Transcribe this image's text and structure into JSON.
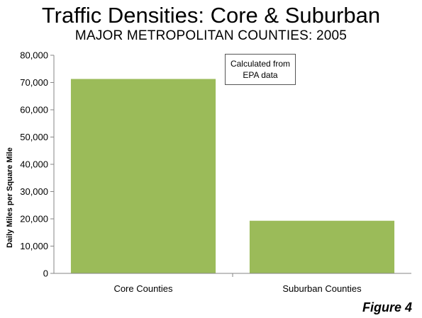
{
  "title": "Traffic Densities: Core & Suburban",
  "subtitle": "MAJOR METROPOLITAN COUNTIES: 2005",
  "annotation": {
    "line1": "Calculated from",
    "line2": "EPA data"
  },
  "figure_label": "Figure 4",
  "colors": {
    "bar": "#9bbb59",
    "axis": "#868686"
  },
  "chart_data": {
    "type": "bar",
    "categories": [
      "Core Counties",
      "Suburban Counties"
    ],
    "values": [
      71300,
      19300
    ],
    "xlabel": "",
    "ylabel": "Daily Miles per Square Mile",
    "ylim": [
      0,
      80000
    ],
    "yticks": [
      "0",
      "10,000",
      "20,000",
      "30,000",
      "40,000",
      "50,000",
      "60,000",
      "70,000",
      "80,000"
    ],
    "grid": false,
    "legend": "none"
  }
}
